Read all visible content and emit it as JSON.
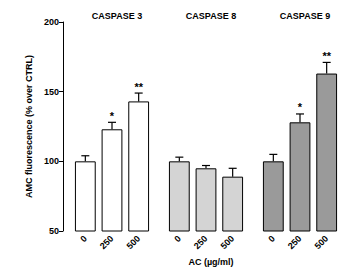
{
  "chart_data": {
    "type": "bar",
    "ylabel": "AMC fluorescence (% over CTRL)",
    "xlabel": "AC (µg/ml)",
    "categories": [
      "0",
      "250",
      "500"
    ],
    "series": [
      {
        "name": "CASPASE 3",
        "color": "#ffffff",
        "values": [
          100,
          123,
          143
        ],
        "errors": [
          4,
          5,
          6
        ],
        "annotations": [
          null,
          "*",
          "**"
        ]
      },
      {
        "name": "CASPASE 8",
        "color": "#d4d4d4",
        "values": [
          100,
          95,
          89
        ],
        "errors": [
          3,
          2,
          6
        ],
        "annotations": [
          null,
          null,
          null
        ]
      },
      {
        "name": "CASPASE 9",
        "color": "#9a9a9a",
        "values": [
          100,
          128,
          163
        ],
        "errors": [
          5,
          6,
          8
        ],
        "annotations": [
          null,
          "*",
          "**"
        ]
      }
    ],
    "ylim": [
      50,
      200
    ],
    "yticks": [
      50,
      100,
      150,
      200
    ],
    "grid": false
  }
}
